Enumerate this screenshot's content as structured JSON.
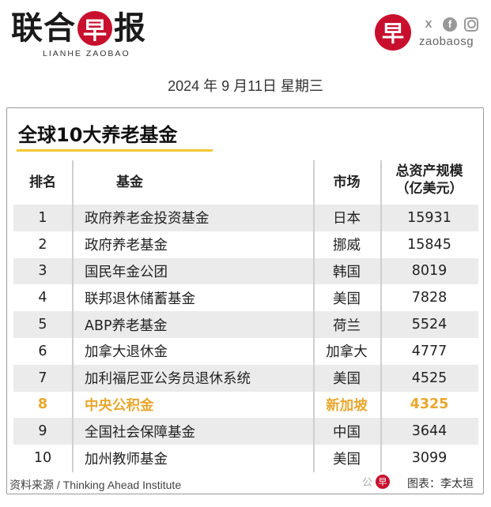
{
  "header": {
    "logo_chars": [
      "联",
      "合",
      "早",
      "报"
    ],
    "logo_en": "LIANHE ZAOBAO",
    "brand_char": "早",
    "social_icons": [
      "x-icon",
      "facebook-icon",
      "instagram-icon"
    ],
    "social_x": "X",
    "social_fb": "f",
    "handle": "zaobaosg",
    "brand_color": "#c8102e"
  },
  "date": "2024 年 9 月11日 星期三",
  "card": {
    "title": "全球10大养老基金",
    "columns": {
      "rank": "排名",
      "fund": "基金",
      "market": "市场",
      "assets_line1": "总资产规模",
      "assets_line2": "（亿美元）"
    },
    "rows": [
      {
        "rank": "1",
        "fund": "政府养老金投资基金",
        "market": "日本",
        "assets": "15931"
      },
      {
        "rank": "2",
        "fund": "政府养老基金",
        "market": "挪威",
        "assets": "15845"
      },
      {
        "rank": "3",
        "fund": "国民年金公团",
        "market": "韩国",
        "assets": "8019"
      },
      {
        "rank": "4",
        "fund": "联邦退休储蓄基金",
        "market": "美国",
        "assets": "7828"
      },
      {
        "rank": "5",
        "fund": "ABP养老基金",
        "market": "荷兰",
        "assets": "5524"
      },
      {
        "rank": "6",
        "fund": "加拿大退休金",
        "market": "加拿大",
        "assets": "4777"
      },
      {
        "rank": "7",
        "fund": "加利福尼亚公务员退休系统",
        "market": "美国",
        "assets": "4525"
      },
      {
        "rank": "8",
        "fund": "中央公积金",
        "market": "新加坡",
        "assets": "4325"
      },
      {
        "rank": "9",
        "fund": "全国社会保障基金",
        "market": "中国",
        "assets": "3644"
      },
      {
        "rank": "10",
        "fund": "加州教师基金",
        "market": "美国",
        "assets": "3099"
      }
    ],
    "highlight_color": "#e8a72e",
    "accent_color": "#f2c832"
  },
  "footer": {
    "source": "资料来源 / Thinking Ahead Institute",
    "watermark_prefix": "公",
    "watermark_char": "早",
    "credit": "图表：李太垣"
  }
}
